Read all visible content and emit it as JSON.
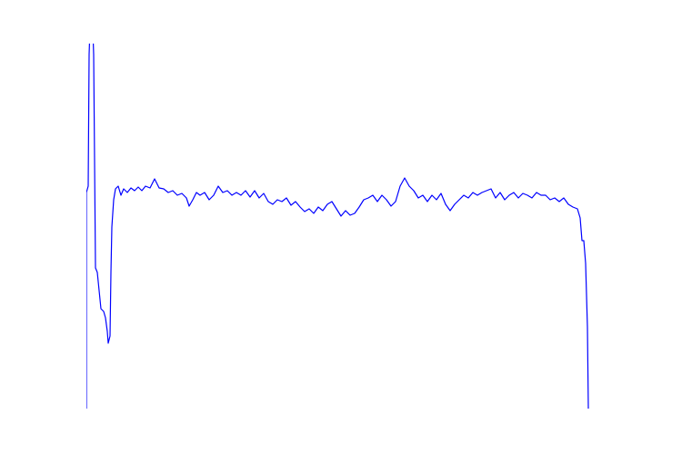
{
  "chart_data": {
    "type": "line",
    "color": "#0000ff",
    "xlim": [
      0,
      552
    ],
    "ylim": [
      0,
      402
    ],
    "x": [
      0,
      0,
      2,
      3,
      4,
      7,
      8,
      10,
      12,
      14,
      16,
      19,
      21,
      23,
      24,
      26,
      27,
      28,
      30,
      32,
      35,
      38,
      41,
      45,
      49,
      53,
      57,
      61,
      65,
      70,
      75,
      80,
      85,
      90,
      95,
      100,
      105,
      110,
      113,
      117,
      121,
      125,
      130,
      135,
      140,
      145,
      150,
      155,
      160,
      165,
      170,
      175,
      180,
      185,
      190,
      195,
      200,
      205,
      210,
      215,
      220,
      225,
      230,
      235,
      240,
      245,
      250,
      255,
      260,
      265,
      270,
      275,
      280,
      285,
      290,
      295,
      300,
      305,
      310,
      315,
      320,
      325,
      330,
      335,
      340,
      345,
      350,
      355,
      360,
      365,
      370,
      375,
      380,
      385,
      390,
      395,
      400,
      405,
      410,
      415,
      420,
      425,
      430,
      435,
      440,
      445,
      450,
      455,
      460,
      465,
      470,
      475,
      480,
      485,
      490,
      495,
      500,
      505,
      510,
      515,
      520,
      525,
      530,
      535,
      540,
      543,
      545,
      547,
      549,
      551,
      552
    ],
    "values": [
      0,
      238,
      245,
      390,
      420,
      420,
      390,
      155,
      150,
      130,
      110,
      107,
      100,
      85,
      72,
      80,
      150,
      200,
      230,
      242,
      245,
      235,
      242,
      238,
      243,
      240,
      244,
      240,
      245,
      243,
      253,
      243,
      242,
      238,
      240,
      235,
      237,
      232,
      223,
      230,
      238,
      235,
      238,
      230,
      235,
      245,
      238,
      240,
      235,
      238,
      235,
      240,
      233,
      240,
      232,
      237,
      228,
      225,
      230,
      228,
      232,
      224,
      228,
      222,
      217,
      220,
      215,
      222,
      218,
      225,
      228,
      220,
      212,
      218,
      213,
      215,
      222,
      230,
      232,
      235,
      228,
      235,
      230,
      223,
      228,
      245,
      254,
      245,
      240,
      232,
      235,
      228,
      235,
      230,
      237,
      225,
      218,
      225,
      230,
      235,
      232,
      238,
      235,
      238,
      240,
      242,
      232,
      238,
      230,
      235,
      238,
      232,
      237,
      235,
      232,
      238,
      235,
      235,
      230,
      232,
      228,
      232,
      225,
      222,
      220,
      210,
      185,
      185,
      160,
      90,
      0
    ]
  }
}
